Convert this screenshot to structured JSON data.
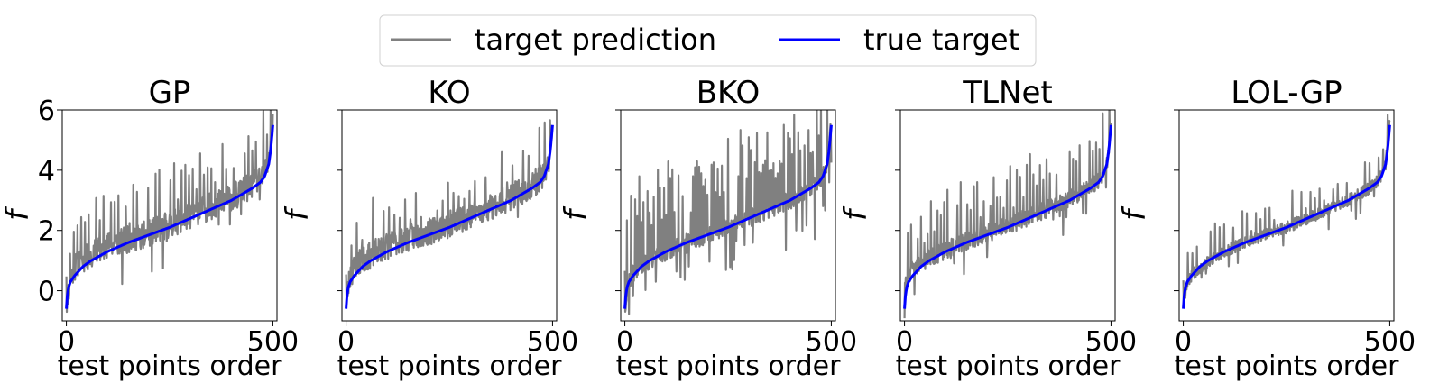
{
  "figure": {
    "legend": {
      "placement": "top-center",
      "entries": [
        {
          "label": "target prediction",
          "color": "#808080"
        },
        {
          "label": "true target",
          "color": "#0000ff"
        }
      ]
    }
  },
  "chart_data": [
    {
      "type": "line",
      "title": "GP",
      "xlabel": "test points order",
      "ylabel": "f",
      "xlim": [
        -10,
        510
      ],
      "ylim": [
        -1,
        6
      ],
      "xticks": [
        0,
        500
      ],
      "yticks": [
        0,
        2,
        4,
        6
      ],
      "ytick_labels_shown": true,
      "grid": false,
      "series": [
        {
          "name": "target prediction",
          "color": "#808080",
          "noise": 0.45,
          "spike_every": 9,
          "spike_size": 1.3,
          "seed": 11,
          "x": [
            0,
            10,
            25,
            50,
            100,
            150,
            200,
            250,
            300,
            350,
            400,
            450,
            475,
            490,
            495,
            500
          ],
          "y": [
            -0.4,
            0.4,
            0.9,
            1.1,
            1.5,
            1.7,
            1.9,
            2.2,
            2.5,
            2.8,
            3.1,
            3.5,
            3.8,
            4.3,
            5.0,
            5.6
          ]
        },
        {
          "name": "true target",
          "color": "#0000ff",
          "x": [
            0,
            2,
            5,
            10,
            20,
            40,
            60,
            100,
            150,
            200,
            250,
            300,
            350,
            400,
            450,
            470,
            480,
            490,
            495,
            500
          ],
          "y": [
            -0.6,
            -0.2,
            0.1,
            0.3,
            0.5,
            0.8,
            1.0,
            1.3,
            1.6,
            1.85,
            2.1,
            2.4,
            2.7,
            3.0,
            3.4,
            3.6,
            3.8,
            4.2,
            4.7,
            5.5
          ]
        }
      ]
    },
    {
      "type": "line",
      "title": "KO",
      "xlabel": "test points order",
      "ylabel": "f",
      "xlim": [
        -10,
        510
      ],
      "ylim": [
        -1,
        6
      ],
      "xticks": [
        0,
        500
      ],
      "yticks": [
        0,
        2,
        4,
        6
      ],
      "ytick_labels_shown": false,
      "grid": false,
      "series": [
        {
          "name": "target prediction",
          "color": "#808080",
          "noise": 0.45,
          "spike_every": 13,
          "spike_size": 1.0,
          "seed": 23,
          "x": [
            0,
            10,
            25,
            50,
            100,
            150,
            200,
            250,
            300,
            350,
            400,
            450,
            475,
            490,
            495,
            500
          ],
          "y": [
            -0.3,
            0.5,
            0.9,
            1.1,
            1.5,
            1.75,
            1.95,
            2.2,
            2.5,
            2.8,
            3.1,
            3.5,
            3.8,
            4.2,
            4.6,
            5.2
          ]
        },
        {
          "name": "true target",
          "color": "#0000ff",
          "x": [
            0,
            2,
            5,
            10,
            20,
            40,
            60,
            100,
            150,
            200,
            250,
            300,
            350,
            400,
            450,
            470,
            480,
            490,
            495,
            500
          ],
          "y": [
            -0.6,
            -0.2,
            0.1,
            0.3,
            0.5,
            0.8,
            1.0,
            1.3,
            1.6,
            1.85,
            2.1,
            2.4,
            2.7,
            3.0,
            3.4,
            3.6,
            3.8,
            4.2,
            4.7,
            5.5
          ]
        }
      ]
    },
    {
      "type": "line",
      "title": "BKO",
      "xlabel": "test points order",
      "ylabel": "f",
      "xlim": [
        -10,
        510
      ],
      "ylim": [
        -1,
        6
      ],
      "xticks": [
        0,
        500
      ],
      "yticks": [
        0,
        2,
        4,
        6
      ],
      "ytick_labels_shown": false,
      "grid": false,
      "series": [
        {
          "name": "target prediction",
          "color": "#808080",
          "noise": 0.3,
          "spike_every": 5,
          "spike_size": 2.0,
          "seed": 37,
          "x": [
            0,
            10,
            25,
            50,
            100,
            150,
            200,
            250,
            300,
            350,
            400,
            450,
            475,
            490,
            495,
            500
          ],
          "y": [
            -0.5,
            0.3,
            0.7,
            0.9,
            1.3,
            1.6,
            1.85,
            2.1,
            2.4,
            2.7,
            3.0,
            3.4,
            3.7,
            4.2,
            4.9,
            5.6
          ]
        },
        {
          "name": "true target",
          "color": "#0000ff",
          "x": [
            0,
            2,
            5,
            10,
            20,
            40,
            60,
            100,
            150,
            200,
            250,
            300,
            350,
            400,
            450,
            470,
            480,
            490,
            495,
            500
          ],
          "y": [
            -0.6,
            -0.2,
            0.1,
            0.3,
            0.5,
            0.8,
            1.0,
            1.3,
            1.6,
            1.85,
            2.1,
            2.4,
            2.7,
            3.0,
            3.4,
            3.6,
            3.8,
            4.2,
            4.7,
            5.5
          ]
        }
      ]
    },
    {
      "type": "line",
      "title": "TLNet",
      "xlabel": "test points order",
      "ylabel": "f",
      "xlim": [
        -10,
        510
      ],
      "ylim": [
        -1,
        6
      ],
      "xticks": [
        0,
        500
      ],
      "yticks": [
        0,
        2,
        4,
        6
      ],
      "ytick_labels_shown": false,
      "grid": false,
      "series": [
        {
          "name": "target prediction",
          "color": "#808080",
          "noise": 0.3,
          "spike_every": 8,
          "spike_size": 1.3,
          "seed": 51,
          "x": [
            0,
            10,
            25,
            50,
            100,
            150,
            200,
            250,
            300,
            350,
            400,
            450,
            475,
            490,
            495,
            500
          ],
          "y": [
            0.2,
            0.5,
            0.8,
            1.0,
            1.35,
            1.65,
            1.9,
            2.15,
            2.45,
            2.75,
            3.05,
            3.45,
            3.75,
            4.2,
            4.8,
            5.5
          ]
        },
        {
          "name": "true target",
          "color": "#0000ff",
          "x": [
            0,
            2,
            5,
            10,
            20,
            40,
            60,
            100,
            150,
            200,
            250,
            300,
            350,
            400,
            450,
            470,
            480,
            490,
            495,
            500
          ],
          "y": [
            -0.6,
            -0.2,
            0.1,
            0.3,
            0.5,
            0.8,
            1.0,
            1.3,
            1.6,
            1.85,
            2.1,
            2.4,
            2.7,
            3.0,
            3.4,
            3.6,
            3.8,
            4.2,
            4.7,
            5.5
          ]
        }
      ]
    },
    {
      "type": "line",
      "title": "LOL-GP",
      "xlabel": "test points order",
      "ylabel": "f",
      "xlim": [
        -10,
        510
      ],
      "ylim": [
        -1,
        6
      ],
      "xticks": [
        0,
        500
      ],
      "yticks": [
        0,
        2,
        4,
        6
      ],
      "ytick_labels_shown": false,
      "grid": false,
      "series": [
        {
          "name": "target prediction",
          "color": "#808080",
          "noise": 0.2,
          "spike_every": 11,
          "spike_size": 0.7,
          "seed": 67,
          "x": [
            0,
            10,
            25,
            50,
            100,
            150,
            200,
            250,
            300,
            350,
            400,
            450,
            475,
            490,
            495,
            500
          ],
          "y": [
            -0.4,
            0.3,
            0.6,
            0.85,
            1.3,
            1.6,
            1.85,
            2.1,
            2.4,
            2.7,
            3.0,
            3.4,
            3.7,
            4.2,
            4.9,
            5.6
          ]
        },
        {
          "name": "true target",
          "color": "#0000ff",
          "x": [
            0,
            2,
            5,
            10,
            20,
            40,
            60,
            100,
            150,
            200,
            250,
            300,
            350,
            400,
            450,
            470,
            480,
            490,
            495,
            500
          ],
          "y": [
            -0.6,
            -0.2,
            0.1,
            0.3,
            0.5,
            0.8,
            1.0,
            1.3,
            1.6,
            1.85,
            2.1,
            2.4,
            2.7,
            3.0,
            3.4,
            3.6,
            3.8,
            4.2,
            4.7,
            5.5
          ]
        }
      ]
    }
  ]
}
